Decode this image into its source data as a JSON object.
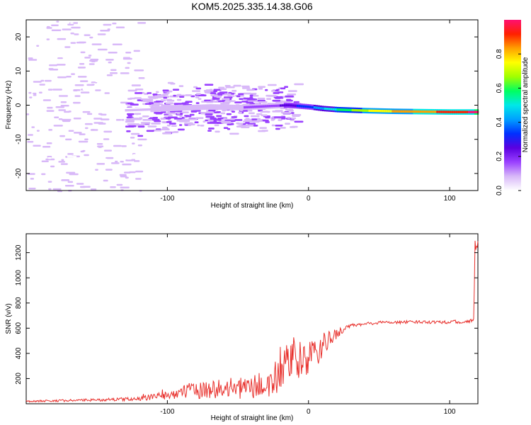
{
  "title": "KOM5.2025.335.14.38.G06",
  "chart_data": [
    {
      "type": "heatmap",
      "name": "spectrogram",
      "xlabel": "Height of straight line (km)",
      "ylabel": "Frequency (Hz)",
      "xlim": [
        -200,
        120
      ],
      "ylim": [
        -25,
        25
      ],
      "xticks": [
        -100,
        0,
        100
      ],
      "xtick_labels": [
        "-100",
        "0",
        "100"
      ],
      "yticks": [
        20,
        10,
        0,
        -10,
        -20
      ],
      "ytick_labels": [
        "20",
        "10",
        "0",
        "-10",
        "-20"
      ],
      "colorbar": {
        "label": "Normalized spectral amplitude",
        "range": [
          0,
          1
        ],
        "ticks": [
          0.0,
          0.2,
          0.4,
          0.6,
          0.8
        ],
        "tick_labels": [
          "0.0",
          "0.2",
          "0.4",
          "0.6",
          "0.8"
        ],
        "colors": [
          "#ffffff",
          "#d8b8f8",
          "#9a40ff",
          "#5a00e0",
          "#0030ff",
          "#00a0ff",
          "#00e8e8",
          "#00ff60",
          "#a0ff00",
          "#ffff00",
          "#ffa000",
          "#ff2000",
          "#ff1070"
        ]
      },
      "signal_ridge": {
        "x": [
          -130,
          -110,
          -90,
          -70,
          -50,
          -30,
          -15,
          0,
          10,
          20,
          40,
          60,
          80,
          100,
          120
        ],
        "y": [
          -1.5,
          -1.2,
          -0.8,
          -0.5,
          -0.7,
          -0.3,
          0.0,
          -0.5,
          -1.0,
          -1.3,
          -1.6,
          -1.8,
          -1.9,
          -2.0,
          -2.0
        ],
        "amplitude": [
          0.05,
          0.08,
          0.1,
          0.12,
          0.12,
          0.15,
          0.25,
          0.35,
          0.45,
          0.55,
          0.7,
          0.8,
          0.85,
          0.9,
          1.0
        ]
      }
    },
    {
      "type": "line",
      "name": "snr",
      "xlabel": "Height of straight line (km)",
      "ylabel": "SNR (v/v)",
      "xlim": [
        -200,
        120
      ],
      "ylim": [
        0,
        1350
      ],
      "xticks": [
        -100,
        0,
        100
      ],
      "xtick_labels": [
        "-100",
        "0",
        "100"
      ],
      "yticks": [
        200,
        400,
        600,
        800,
        1000,
        1200
      ],
      "ytick_labels": [
        "200",
        "400",
        "600",
        "800",
        "1000",
        "1200"
      ],
      "color": "#e8302c",
      "envelope": {
        "x": [
          -200,
          -150,
          -120,
          -100,
          -80,
          -60,
          -40,
          -25,
          -20,
          -10,
          0,
          10,
          20,
          30,
          50,
          80,
          100,
          110,
          117,
          118,
          120
        ],
        "y": [
          20,
          30,
          40,
          70,
          110,
          120,
          130,
          160,
          280,
          330,
          360,
          450,
          560,
          620,
          645,
          650,
          650,
          650,
          660,
          1250,
          1290
        ],
        "noise": [
          8,
          10,
          15,
          35,
          70,
          80,
          90,
          140,
          180,
          160,
          140,
          110,
          40,
          15,
          12,
          12,
          15,
          12,
          15,
          50,
          40
        ]
      }
    }
  ]
}
